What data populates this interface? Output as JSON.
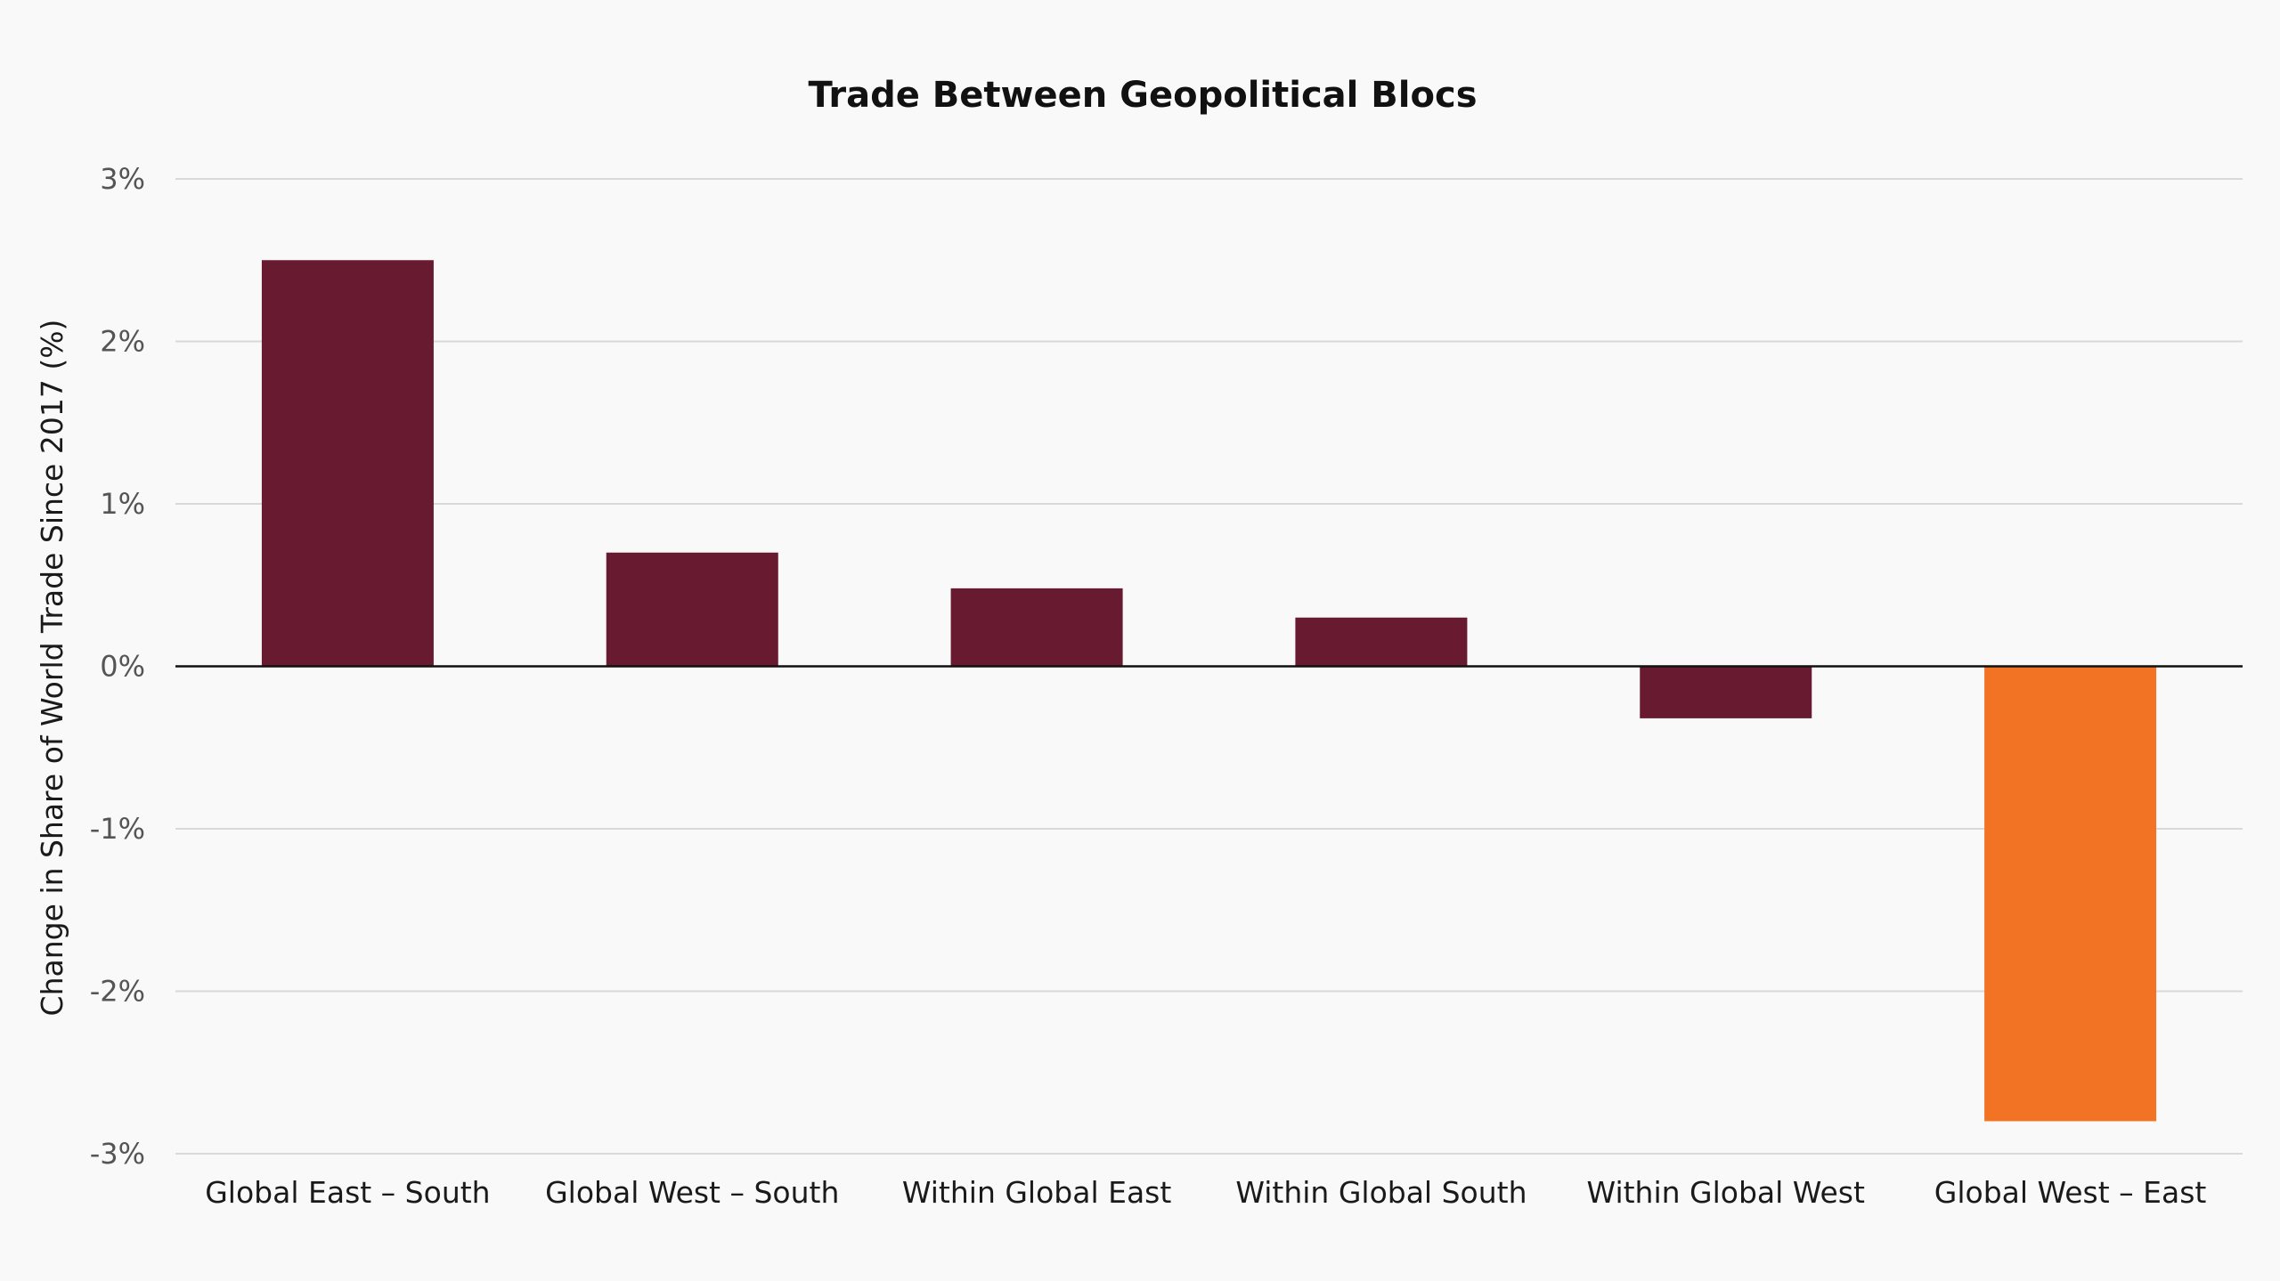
{
  "chart_data": {
    "type": "bar",
    "title": "Trade Between Geopolitical Blocs",
    "xlabel": "",
    "ylabel": "Change in Share of World Trade Since 2017 (%)",
    "categories": [
      "Global East – South",
      "Global West – South",
      "Within Global East",
      "Within Global South",
      "Within Global West",
      "Global West – East"
    ],
    "values": [
      2.5,
      0.7,
      0.48,
      0.3,
      -0.32,
      -2.8
    ],
    "ylim": [
      -3,
      3
    ],
    "yticks": [
      3,
      2,
      1,
      0,
      -1,
      -2,
      -3
    ],
    "ytick_labels": [
      "3%",
      "2%",
      "1%",
      "0%",
      "-1%",
      "-2%",
      "-3%"
    ],
    "grid": true,
    "legend": "none",
    "colors": {
      "default_bar": "#681a31",
      "highlight_bar": "#f37325",
      "gridline": "#d9d9d9",
      "zero_line": "#111111",
      "background": "#f9f9f9"
    },
    "highlight_index": 5
  }
}
